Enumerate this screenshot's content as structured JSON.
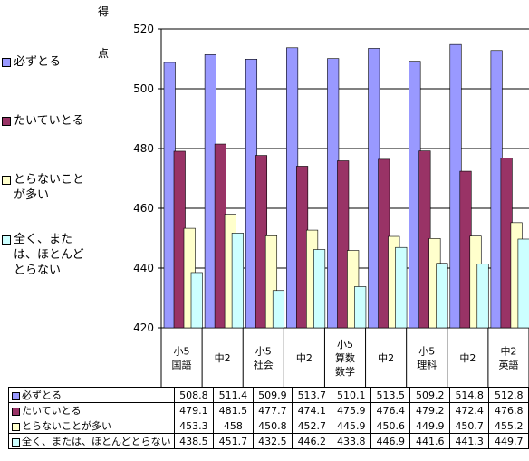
{
  "chart_data": {
    "type": "bar",
    "ylabel_chars": [
      "得",
      "点"
    ],
    "ylim": [
      420,
      520
    ],
    "yticks": [
      420,
      440,
      460,
      480,
      500,
      520
    ],
    "grid": true,
    "legend_position": "left",
    "categories": [
      [
        "小5",
        "国語"
      ],
      [
        "中2"
      ],
      [
        "小5",
        "社会"
      ],
      [
        "中2"
      ],
      [
        "小5",
        "算数",
        "数学"
      ],
      [
        "中2"
      ],
      [
        "小5",
        "理科"
      ],
      [
        "中2"
      ],
      [
        "中2",
        "英語"
      ]
    ],
    "series": [
      {
        "name": "必ずとる",
        "color": "#9999ff",
        "values": [
          508.8,
          511.4,
          509.9,
          513.7,
          510.1,
          513.5,
          509.2,
          514.8,
          512.8
        ]
      },
      {
        "name": "たいていとる",
        "color": "#993366",
        "values": [
          479.1,
          481.5,
          477.7,
          474.1,
          475.9,
          476.4,
          479.2,
          472.4,
          476.8
        ]
      },
      {
        "name": "とらないことが多い",
        "color": "#ffffcc",
        "values": [
          453.3,
          458,
          450.8,
          452.7,
          445.9,
          450.6,
          449.9,
          450.7,
          455.2
        ]
      },
      {
        "name": "全く、または、ほとんどとらない",
        "color": "#ccffff",
        "values": [
          438.5,
          451.7,
          432.5,
          446.2,
          433.8,
          446.9,
          441.6,
          441.3,
          449.7
        ]
      }
    ]
  },
  "legend": [
    {
      "label": "必ずとる"
    },
    {
      "label": "たいていとる"
    },
    {
      "label": "とらないことが多い"
    },
    {
      "label": "全く、または、ほとんどとらない"
    }
  ],
  "table": {
    "row_labels": [
      "必ずとる",
      "たいていとる",
      "とらないことが多い",
      "全く、または、ほとんどとらない"
    ],
    "values": [
      [
        "508.8",
        "511.4",
        "509.9",
        "513.7",
        "510.1",
        "513.5",
        "509.2",
        "514.8",
        "512.8"
      ],
      [
        "479.1",
        "481.5",
        "477.7",
        "474.1",
        "475.9",
        "476.4",
        "479.2",
        "472.4",
        "476.8"
      ],
      [
        "453.3",
        "458",
        "450.8",
        "452.7",
        "445.9",
        "450.6",
        "449.9",
        "450.7",
        "455.2"
      ],
      [
        "438.5",
        "451.7",
        "432.5",
        "446.2",
        "433.8",
        "446.9",
        "441.6",
        "441.3",
        "449.7"
      ]
    ]
  }
}
